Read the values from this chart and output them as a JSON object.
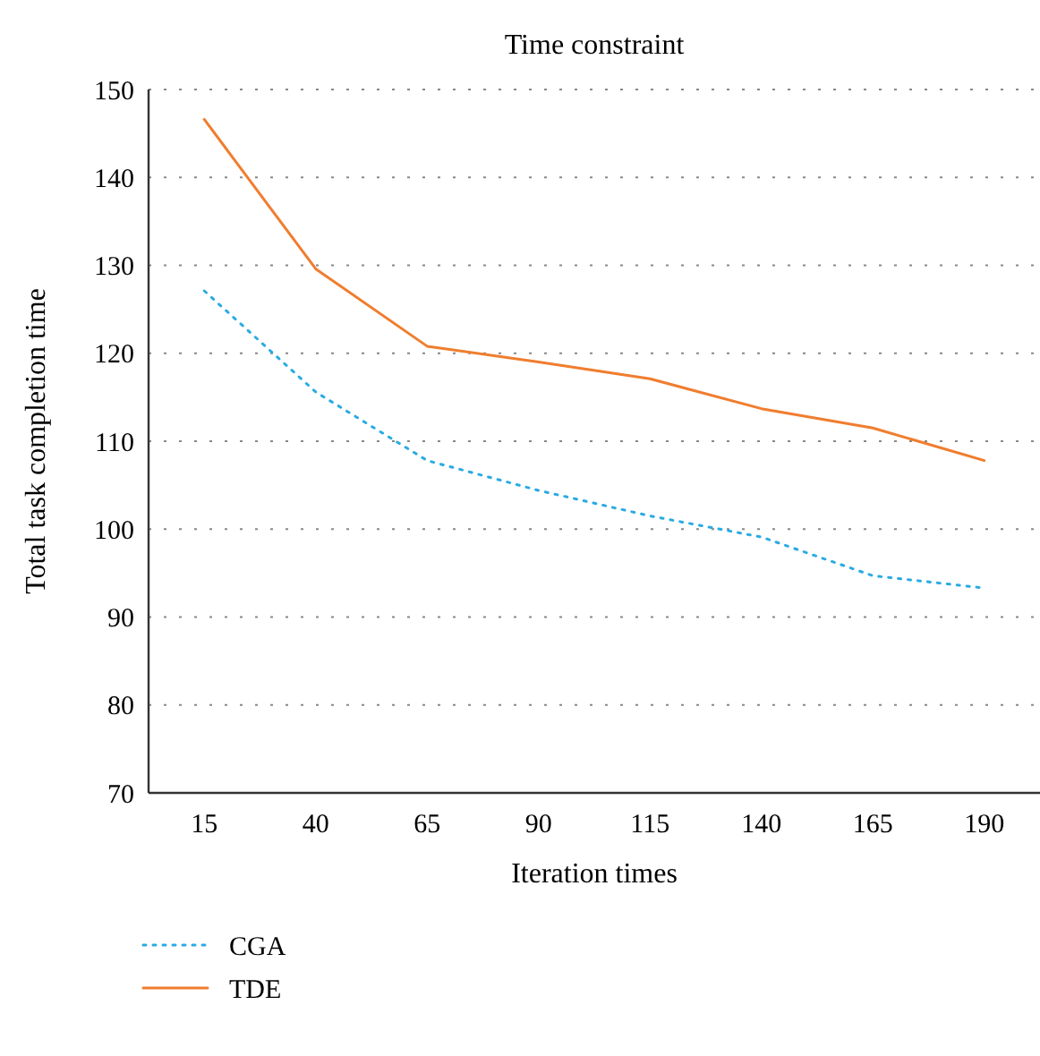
{
  "chart_data": {
    "type": "line",
    "title": "Time constraint",
    "xlabel": "Iteration times",
    "ylabel": "Total task completion time",
    "categories": [
      "15",
      "40",
      "65",
      "90",
      "115",
      "140",
      "165",
      "190"
    ],
    "series": [
      {
        "name": "CGA",
        "color": "#29abe2",
        "line_style": "dotted",
        "values": [
          127.1,
          115.6,
          107.8,
          104.4,
          101.5,
          99.1,
          94.7,
          93.3
        ]
      },
      {
        "name": "TDE",
        "color": "#f07d2e",
        "line_style": "solid",
        "values": [
          146.6,
          129.6,
          120.8,
          119.0,
          117.1,
          113.7,
          111.5,
          107.8
        ]
      }
    ],
    "ylim": [
      70,
      150
    ],
    "yticks": [
      70,
      80,
      90,
      100,
      110,
      120,
      130,
      140,
      150
    ],
    "grid": "y",
    "legend": "bottom",
    "marker": "none"
  }
}
